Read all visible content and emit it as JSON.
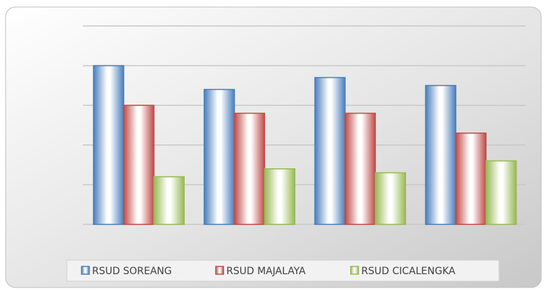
{
  "chart_data": {
    "type": "bar",
    "categories": [
      null,
      null,
      null,
      null
    ],
    "series": [
      {
        "name": "RSUD SOREANG",
        "color": "#4a7ebb",
        "values": [
          4.0,
          3.4,
          3.7,
          3.5
        ]
      },
      {
        "name": "RSUD MAJALAYA",
        "color": "#be4b48",
        "values": [
          3.0,
          2.8,
          2.8,
          2.3
        ]
      },
      {
        "name": "RSUD CICALENGKA",
        "color": "#98b954",
        "values": [
          1.2,
          1.4,
          1.3,
          1.6
        ]
      }
    ],
    "ylim": [
      0,
      5
    ],
    "yticks": [
      0,
      1,
      2,
      3,
      4,
      5
    ],
    "grid": true,
    "legend": "bottom"
  }
}
